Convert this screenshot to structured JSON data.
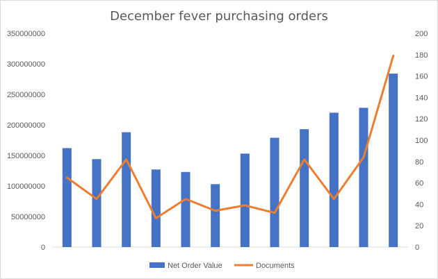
{
  "chart_data": {
    "type": "bar",
    "title": "December fever purchasing orders",
    "categories": [
      "",
      "",
      "",
      "",
      "",
      "",
      "",
      "",
      "",
      "",
      "",
      ""
    ],
    "series": [
      {
        "name": "Net Order Value",
        "type": "bar",
        "axis": "left",
        "color": "#4472C4",
        "values": [
          162000000,
          144000000,
          188000000,
          127000000,
          123000000,
          103000000,
          153000000,
          179000000,
          193000000,
          220000000,
          228000000,
          284000000
        ]
      },
      {
        "name": "Documents",
        "type": "line",
        "axis": "right",
        "color": "#ED7D31",
        "values": [
          65,
          45,
          82,
          27,
          45,
          34,
          39,
          32,
          82,
          45,
          84,
          179
        ]
      }
    ],
    "y_left": {
      "min": 0,
      "max": 350000000,
      "step": 50000000,
      "tick_labels": [
        "0",
        "50000000",
        "100000000",
        "150000000",
        "200000000",
        "250000000",
        "300000000",
        "350000000"
      ]
    },
    "y_right": {
      "min": 0,
      "max": 200,
      "step": 20,
      "tick_labels": [
        "0",
        "20",
        "40",
        "60",
        "80",
        "100",
        "120",
        "140",
        "160",
        "180",
        "200"
      ]
    },
    "grid": false,
    "legend_position": "bottom"
  }
}
